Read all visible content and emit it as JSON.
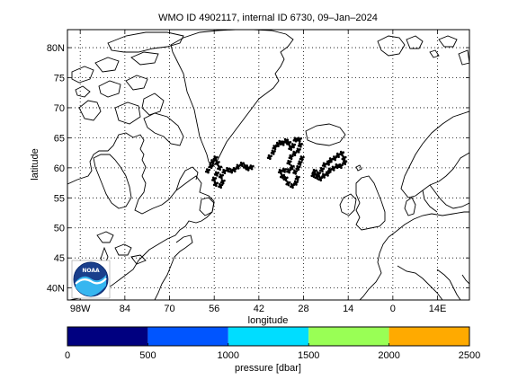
{
  "title": "WMO ID 4902117, internal ID 6730, 09–Jan–2024",
  "map": {
    "xlabel": "longitude",
    "ylabel": "latitude",
    "lon_range": [
      -102,
      24
    ],
    "lat_range": [
      38,
      83
    ],
    "lon_ticks": [
      {
        "value": -98,
        "label": "98W"
      },
      {
        "value": -84,
        "label": "84"
      },
      {
        "value": -70,
        "label": "70"
      },
      {
        "value": -56,
        "label": "56"
      },
      {
        "value": -42,
        "label": "42"
      },
      {
        "value": -28,
        "label": "28"
      },
      {
        "value": -14,
        "label": "14"
      },
      {
        "value": 0,
        "label": "0"
      },
      {
        "value": 14,
        "label": "14E"
      }
    ],
    "lat_ticks": [
      {
        "value": 40,
        "label": "40N"
      },
      {
        "value": 45,
        "label": "45"
      },
      {
        "value": 50,
        "label": "50"
      },
      {
        "value": 55,
        "label": "55"
      },
      {
        "value": 60,
        "label": "60"
      },
      {
        "value": 65,
        "label": "65"
      },
      {
        "value": 70,
        "label": "70"
      },
      {
        "value": 75,
        "label": "75"
      },
      {
        "value": 80,
        "label": "80N"
      }
    ],
    "grid": true,
    "logo_text": "NOAA"
  },
  "colorbar": {
    "label": "pressure [dbar]",
    "range": [
      0,
      2500
    ],
    "ticks": [
      0,
      500,
      1000,
      1500,
      2000,
      2500
    ],
    "tick_labels": [
      "0",
      "500",
      "1000",
      "1500",
      "2000",
      "2500"
    ],
    "colors": [
      "#000080",
      "#0055ff",
      "#00ddff",
      "#99ff55",
      "#ffaa00"
    ]
  },
  "chart_data": {
    "type": "scatter",
    "xlabel": "longitude",
    "ylabel": "latitude",
    "xlim": [
      -102,
      24
    ],
    "ylim": [
      38,
      83
    ],
    "series": [
      {
        "points": [
          [
            -58,
            59.5
          ],
          [
            -57,
            60.3
          ],
          [
            -56.5,
            61
          ],
          [
            -55.6,
            61.6
          ],
          [
            -55,
            60.8
          ],
          [
            -54.3,
            60
          ],
          [
            -55.2,
            59
          ],
          [
            -56,
            58.1
          ],
          [
            -55.5,
            57.3
          ],
          [
            -54,
            57
          ],
          [
            -53.3,
            57.7
          ],
          [
            -53.8,
            58.6
          ],
          [
            -52.8,
            59.4
          ],
          [
            -51.7,
            59.7
          ],
          [
            -50.6,
            59.5
          ],
          [
            -49.6,
            59.7
          ],
          [
            -48.5,
            60.2
          ],
          [
            -47.3,
            60.6
          ],
          [
            -46.2,
            60.2
          ],
          [
            -45.4,
            59.9
          ],
          [
            -44.3,
            60.1
          ],
          [
            -38.6,
            61.8
          ],
          [
            -37.5,
            62.6
          ],
          [
            -37,
            63.4
          ],
          [
            -36,
            63.9
          ],
          [
            -35.3,
            64.2
          ],
          [
            -34.4,
            64.1
          ],
          [
            -33.5,
            64.5
          ],
          [
            -32.6,
            64.1
          ],
          [
            -32,
            63.3
          ],
          [
            -31.2,
            63.7
          ],
          [
            -30.5,
            64.7
          ],
          [
            -29.3,
            64.7
          ],
          [
            -29,
            63.8
          ],
          [
            -29.6,
            62.9
          ],
          [
            -30.8,
            62.4
          ],
          [
            -31.9,
            61.8
          ],
          [
            -32.5,
            60.9
          ],
          [
            -31.6,
            60.1
          ],
          [
            -32.6,
            59.5
          ],
          [
            -34,
            59.6
          ],
          [
            -35.2,
            59.4
          ],
          [
            -34.6,
            58.6
          ],
          [
            -33.6,
            58.2
          ],
          [
            -32.8,
            57.4
          ],
          [
            -31.5,
            57
          ],
          [
            -30.4,
            57.5
          ],
          [
            -29.9,
            58.3
          ],
          [
            -30.6,
            59.3
          ],
          [
            -29.7,
            60
          ],
          [
            -29.1,
            60.8
          ],
          [
            -28.5,
            61.6
          ],
          [
            -24.5,
            59.4
          ],
          [
            -23.3,
            59
          ],
          [
            -22.2,
            59.7
          ],
          [
            -21.4,
            60.5
          ],
          [
            -20.2,
            60.8
          ],
          [
            -19.4,
            61.3
          ],
          [
            -18.2,
            61.6
          ],
          [
            -17.1,
            62.1
          ],
          [
            -16,
            62.4
          ],
          [
            -15.3,
            61.6
          ],
          [
            -15.1,
            60.9
          ],
          [
            -16.3,
            60.3
          ],
          [
            -17.5,
            60.3
          ],
          [
            -18.6,
            59.9
          ],
          [
            -19.7,
            59.6
          ],
          [
            -20.5,
            59
          ],
          [
            -21.6,
            58.7
          ],
          [
            -22.7,
            58.2
          ],
          [
            -23.8,
            58.5
          ],
          [
            -24.9,
            58.8
          ]
        ]
      }
    ]
  }
}
